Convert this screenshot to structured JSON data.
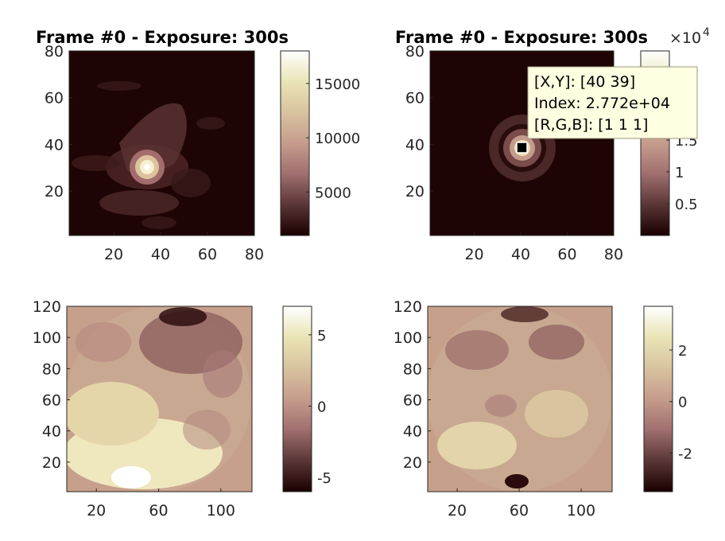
{
  "colormap": [
    "#1a0000",
    "#5a3636",
    "#a06f6f",
    "#c69c8c",
    "#d8c39e",
    "#e9e4b6",
    "#ffffff"
  ],
  "chart_data": [
    {
      "type": "heatmap",
      "title": "Frame #0 - Exposure: 300s",
      "xlim": [
        1,
        80
      ],
      "ylim": [
        1,
        80
      ],
      "xticks": [
        20,
        40,
        60,
        80
      ],
      "yticks": [
        20,
        40,
        60,
        80
      ],
      "colorbar": {
        "range": [
          1000,
          18000
        ],
        "ticks": [
          5000,
          10000,
          15000
        ],
        "tick_labels": [
          "5000",
          "10000",
          "15000"
        ]
      },
      "description_values": {
        "peak_x": 34,
        "peak_y": 29,
        "peak_value": 18000
      }
    },
    {
      "type": "heatmap",
      "title": "Frame #0 - Exposure: 300s",
      "xlim": [
        1,
        80
      ],
      "ylim": [
        1,
        80
      ],
      "xticks": [
        20,
        40,
        60,
        80
      ],
      "yticks": [
        20,
        40,
        60,
        80
      ],
      "colorbar": {
        "range": [
          0,
          2.9
        ],
        "ticks": [
          0.5,
          1,
          1.5
        ],
        "tick_labels": [
          "0.5",
          "1",
          "1.5"
        ],
        "exponent_label": "×10",
        "exponent": "4"
      },
      "datatip": {
        "lines": [
          "[X,Y]: [40 39]",
          "Index: 2.772e+04",
          "[R,G,B]: [1 1 1]"
        ],
        "x": 40,
        "y": 39
      }
    },
    {
      "type": "heatmap",
      "title": "",
      "xlim": [
        1,
        120
      ],
      "ylim": [
        1,
        120
      ],
      "xticks": [
        20,
        60,
        100
      ],
      "xtick_labels": [
        "20",
        "60",
        "100"
      ],
      "yticks": [
        20,
        40,
        60,
        80,
        100,
        120
      ],
      "colorbar": {
        "range": [
          -6,
          7
        ],
        "ticks": [
          -5,
          0,
          5
        ],
        "tick_labels": [
          "-5",
          "0",
          "5"
        ]
      }
    },
    {
      "type": "heatmap",
      "title": "",
      "xlim": [
        1,
        120
      ],
      "ylim": [
        1,
        120
      ],
      "xticks": [
        20,
        60,
        100
      ],
      "xtick_labels": [
        "20",
        "60",
        "100"
      ],
      "yticks": [
        20,
        40,
        60,
        80,
        100,
        120
      ],
      "colorbar": {
        "range": [
          -3.5,
          3.7
        ],
        "ticks": [
          -2,
          0,
          2
        ],
        "tick_labels": [
          "-2",
          "0",
          "2"
        ]
      }
    }
  ]
}
